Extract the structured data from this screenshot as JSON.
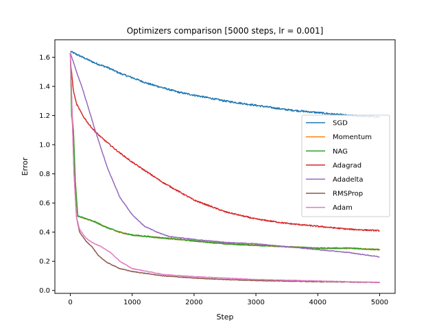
{
  "chart_data": {
    "type": "line",
    "title": "Optimizers comparison [5000 steps, lr = 0.001]",
    "xlabel": "Step",
    "ylabel": "Error",
    "xlim": [
      -250,
      5250
    ],
    "ylim": [
      -0.02,
      1.72
    ],
    "xticks": [
      0,
      1000,
      2000,
      3000,
      4000,
      5000
    ],
    "xtick_labels": [
      "0",
      "1000",
      "2000",
      "3000",
      "4000",
      "5000"
    ],
    "yticks": [
      0.0,
      0.2,
      0.4,
      0.6,
      0.8,
      1.0,
      1.2,
      1.4,
      1.6
    ],
    "ytick_labels": [
      "0.0",
      "0.2",
      "0.4",
      "0.6",
      "0.8",
      "1.0",
      "1.2",
      "1.4",
      "1.6"
    ],
    "grid": false,
    "legend_position": "center-right",
    "series": [
      {
        "name": "SGD",
        "color": "#1f77b4",
        "x": [
          0,
          100,
          200,
          400,
          600,
          800,
          1000,
          1250,
          1500,
          1750,
          2000,
          2500,
          3000,
          3500,
          4000,
          4500,
          5000
        ],
        "values": [
          1.64,
          1.62,
          1.6,
          1.56,
          1.53,
          1.49,
          1.46,
          1.42,
          1.39,
          1.36,
          1.34,
          1.3,
          1.27,
          1.24,
          1.22,
          1.2,
          1.19
        ]
      },
      {
        "name": "Momentum",
        "color": "#ff7f0e",
        "x": [
          0,
          20,
          50,
          80,
          120,
          200,
          400,
          600,
          800,
          1000,
          1500,
          2000,
          2500,
          3000,
          3500,
          4000,
          4500,
          5000
        ],
        "values": [
          1.63,
          1.25,
          1.1,
          0.75,
          0.51,
          0.5,
          0.47,
          0.43,
          0.4,
          0.38,
          0.36,
          0.34,
          0.32,
          0.31,
          0.3,
          0.29,
          0.29,
          0.28
        ]
      },
      {
        "name": "NAG",
        "color": "#2ca02c",
        "x": [
          0,
          20,
          50,
          80,
          120,
          200,
          400,
          600,
          800,
          1000,
          1500,
          2000,
          2500,
          3000,
          3500,
          4000,
          4500,
          5000
        ],
        "values": [
          1.63,
          1.2,
          1.1,
          0.75,
          0.51,
          0.5,
          0.47,
          0.43,
          0.4,
          0.38,
          0.36,
          0.34,
          0.32,
          0.31,
          0.3,
          0.29,
          0.29,
          0.28
        ]
      },
      {
        "name": "Adagrad",
        "color": "#d62728",
        "x": [
          0,
          50,
          100,
          200,
          300,
          400,
          500,
          750,
          1000,
          1250,
          1500,
          2000,
          2500,
          3000,
          3500,
          4000,
          4500,
          5000
        ],
        "values": [
          1.58,
          1.37,
          1.28,
          1.2,
          1.14,
          1.09,
          1.05,
          0.96,
          0.88,
          0.81,
          0.74,
          0.62,
          0.54,
          0.49,
          0.46,
          0.44,
          0.42,
          0.41
        ]
      },
      {
        "name": "Adadelta",
        "color": "#9467bd",
        "x": [
          0,
          100,
          200,
          300,
          400,
          500,
          600,
          800,
          1000,
          1200,
          1400,
          1600,
          2000,
          2500,
          3000,
          3500,
          4000,
          4500,
          5000
        ],
        "values": [
          1.63,
          1.5,
          1.38,
          1.24,
          1.1,
          0.97,
          0.84,
          0.64,
          0.52,
          0.44,
          0.4,
          0.37,
          0.35,
          0.33,
          0.32,
          0.3,
          0.28,
          0.26,
          0.23
        ]
      },
      {
        "name": "RMSProp",
        "color": "#8c564b",
        "x": [
          0,
          30,
          60,
          100,
          150,
          250,
          350,
          450,
          600,
          800,
          1000,
          1500,
          2000,
          2500,
          3000,
          4000,
          5000
        ],
        "values": [
          1.63,
          1.2,
          0.8,
          0.5,
          0.4,
          0.34,
          0.3,
          0.24,
          0.19,
          0.15,
          0.13,
          0.1,
          0.085,
          0.075,
          0.068,
          0.06,
          0.055
        ]
      },
      {
        "name": "Adam",
        "color": "#e377c2",
        "x": [
          0,
          30,
          60,
          100,
          150,
          250,
          350,
          500,
          650,
          800,
          1000,
          1500,
          2000,
          2500,
          3000,
          4000,
          5000
        ],
        "values": [
          1.63,
          1.2,
          0.8,
          0.5,
          0.42,
          0.36,
          0.33,
          0.3,
          0.26,
          0.2,
          0.15,
          0.11,
          0.095,
          0.085,
          0.075,
          0.065,
          0.055
        ]
      }
    ]
  }
}
